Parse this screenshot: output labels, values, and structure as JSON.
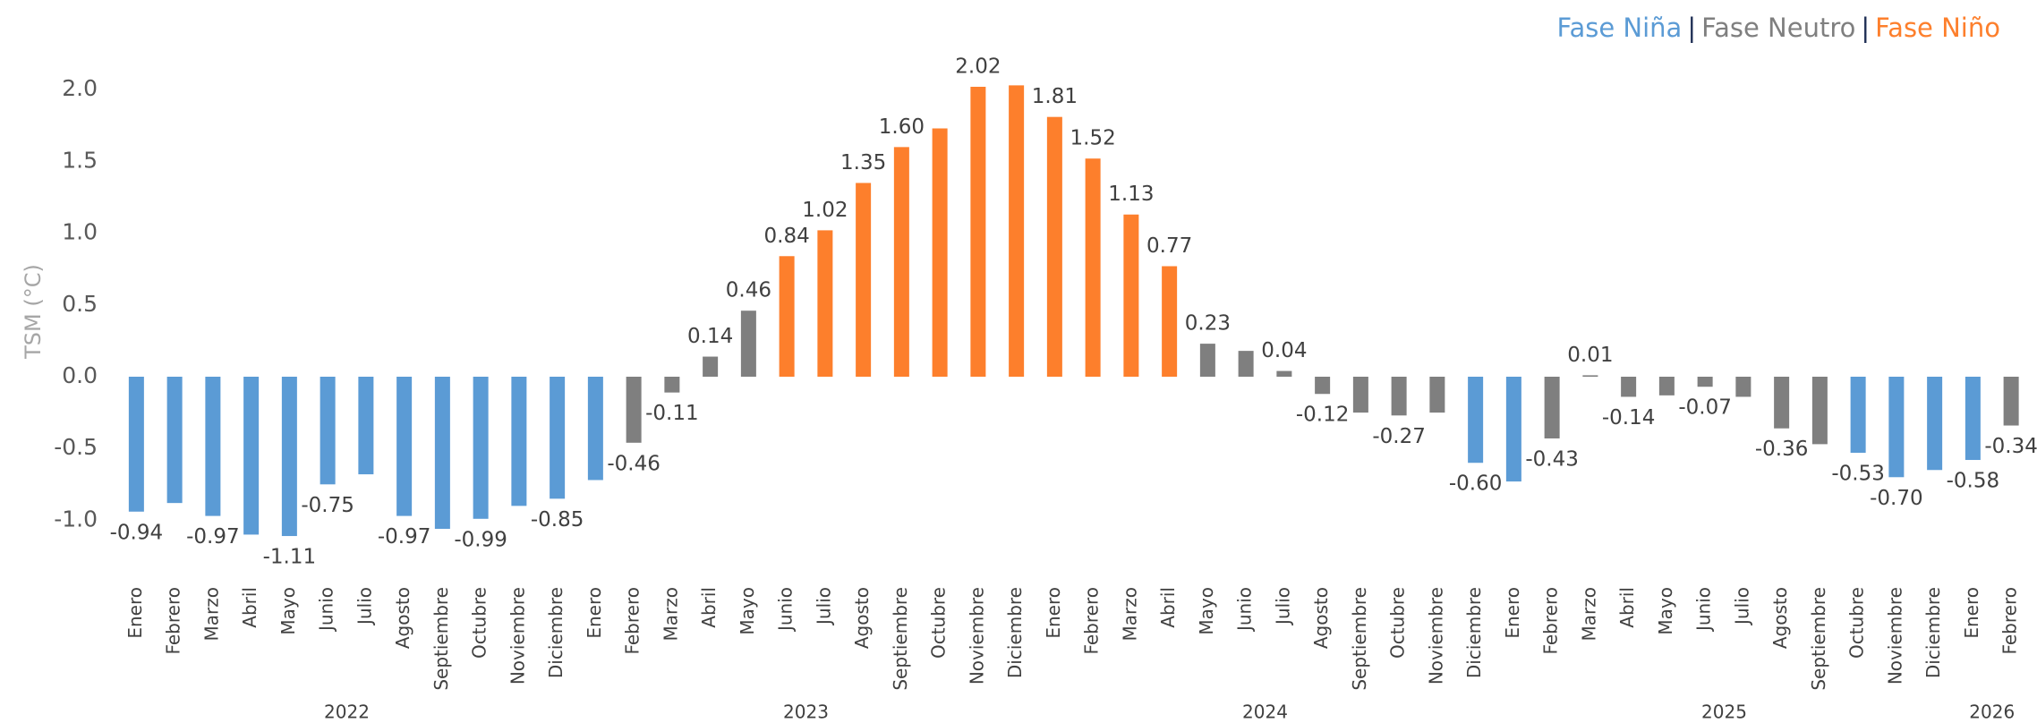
{
  "chart_data": {
    "type": "bar",
    "y_label": "TSM (°C)",
    "legend": [
      {
        "name": "Fase Niña",
        "color": "#5b9bd5"
      },
      {
        "name": "Fase Neutro",
        "color": "#7f7f7f"
      },
      {
        "name": "Fase Niño",
        "color": "#fd7f2c"
      }
    ],
    "legend_separator": "|",
    "legend_separator_color": "#1f2f55",
    "groups": [
      {
        "label": "2022",
        "categories": [
          "Enero",
          "Febrero",
          "Marzo",
          "Abril",
          "Mayo",
          "Junio",
          "Julio",
          "Agosto",
          "Septiembre",
          "Octubre",
          "Noviembre",
          "Diciembre"
        ]
      },
      {
        "label": "2023",
        "categories": [
          "Enero",
          "Febrero",
          "Marzo",
          "Abril",
          "Mayo",
          "Junio",
          "Julio",
          "Agosto",
          "Septiembre",
          "Octubre",
          "Noviembre",
          "Diciembre"
        ]
      },
      {
        "label": "2024",
        "categories": [
          "Enero",
          "Febrero",
          "Marzo",
          "Abril",
          "Mayo",
          "Junio",
          "Julio",
          "Agosto",
          "Septiembre",
          "Octubre",
          "Noviembre",
          "Diciembre"
        ]
      },
      {
        "label": "2025",
        "categories": [
          "Enero",
          "Febrero",
          "Marzo",
          "Abril",
          "Mayo",
          "Junio",
          "Julio",
          "Agosto",
          "Septiembre",
          "Octubre",
          "Noviembre",
          "Diciembre"
        ]
      },
      {
        "label": "2026",
        "categories": [
          "Enero",
          "Febrero"
        ]
      }
    ],
    "values": [
      -0.94,
      -0.88,
      -0.97,
      -1.1,
      -1.11,
      -0.75,
      -0.68,
      -0.97,
      -1.06,
      -0.99,
      -0.9,
      -0.85,
      -0.72,
      -0.46,
      -0.11,
      0.14,
      0.46,
      0.84,
      1.02,
      1.35,
      1.6,
      1.73,
      2.02,
      2.03,
      1.81,
      1.52,
      1.13,
      0.77,
      0.23,
      0.18,
      0.04,
      -0.12,
      -0.25,
      -0.27,
      -0.25,
      -0.6,
      -0.73,
      -0.43,
      0.01,
      -0.14,
      -0.13,
      -0.07,
      -0.14,
      -0.36,
      -0.47,
      -0.53,
      -0.7,
      -0.65,
      -0.58,
      -0.34
    ],
    "value_labels": [
      "-0.94",
      null,
      "-0.97",
      null,
      "-1.11",
      "-0.75",
      null,
      "-0.97",
      null,
      "-0.99",
      null,
      "-0.85",
      null,
      "-0.46",
      "-0.11",
      "0.14",
      "0.46",
      "0.84",
      "1.02",
      "1.35",
      "1.60",
      null,
      "2.02",
      null,
      "1.81",
      "1.52",
      "1.13",
      "0.77",
      "0.23",
      null,
      "0.04",
      "-0.12",
      null,
      "-0.27",
      null,
      "-0.60",
      null,
      "-0.43",
      "0.01",
      "-0.14",
      null,
      "-0.07",
      null,
      "-0.36",
      null,
      "-0.53",
      "-0.70",
      null,
      "-0.58",
      "-0.34"
    ],
    "colors": [
      "#5b9bd5",
      "#5b9bd5",
      "#5b9bd5",
      "#5b9bd5",
      "#5b9bd5",
      "#5b9bd5",
      "#5b9bd5",
      "#5b9bd5",
      "#5b9bd5",
      "#5b9bd5",
      "#5b9bd5",
      "#5b9bd5",
      "#5b9bd5",
      "#7f7f7f",
      "#7f7f7f",
      "#7f7f7f",
      "#7f7f7f",
      "#fd7f2c",
      "#fd7f2c",
      "#fd7f2c",
      "#fd7f2c",
      "#fd7f2c",
      "#fd7f2c",
      "#fd7f2c",
      "#fd7f2c",
      "#fd7f2c",
      "#fd7f2c",
      "#fd7f2c",
      "#7f7f7f",
      "#7f7f7f",
      "#7f7f7f",
      "#7f7f7f",
      "#7f7f7f",
      "#7f7f7f",
      "#7f7f7f",
      "#5b9bd5",
      "#5b9bd5",
      "#7f7f7f",
      "#7f7f7f",
      "#7f7f7f",
      "#7f7f7f",
      "#7f7f7f",
      "#7f7f7f",
      "#7f7f7f",
      "#7f7f7f",
      "#5b9bd5",
      "#5b9bd5",
      "#5b9bd5",
      "#5b9bd5",
      "#7f7f7f"
    ],
    "ylim": [
      -1.2,
      2.2
    ],
    "yticks": [
      {
        "value": -1.0,
        "label": "-1.0"
      },
      -0.5,
      {
        "value": 0.0,
        "label": "0.0"
      },
      0.5,
      {
        "value": 1.0,
        "label": "1.0"
      },
      1.5,
      {
        "value": 2.0,
        "label": "2.0"
      }
    ],
    "grid": false
  }
}
